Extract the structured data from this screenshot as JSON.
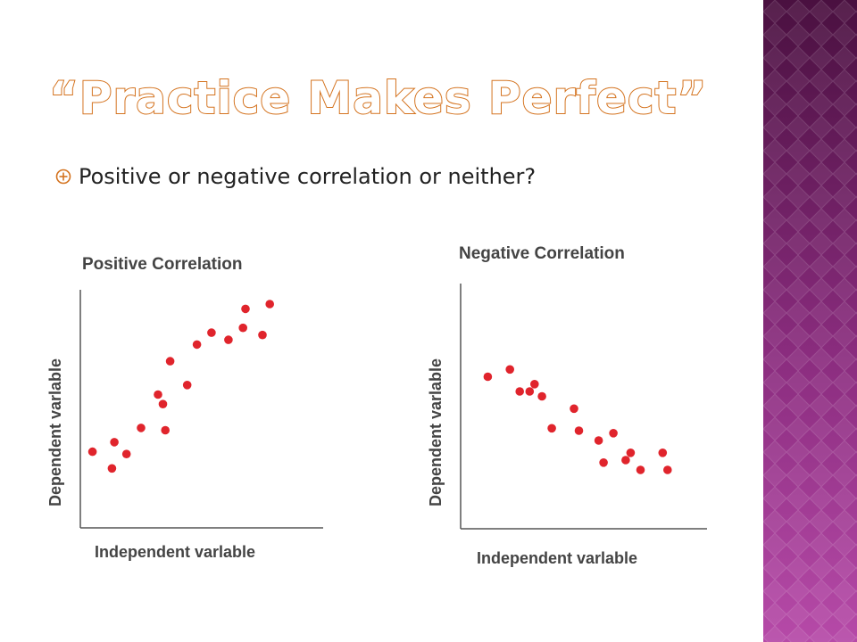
{
  "slide": {
    "title": "“Practice Makes Perfect”",
    "bullet": "Positive or negative correlation or neither?",
    "accent_color": "#d4731f",
    "sidebar_colors": [
      "#4a1040",
      "#b64aa8"
    ],
    "bullet_icon": "circled-plus-bullet-icon"
  },
  "chart_data": [
    {
      "type": "scatter",
      "title": "Positive Correlation",
      "xlabel": "Independent varlable",
      "ylabel": "Dependent varlable",
      "point_color": "#e0242c",
      "xlim": [
        0,
        100
      ],
      "ylim": [
        0,
        100
      ],
      "grid": false,
      "points": [
        {
          "x": 5,
          "y": 32
        },
        {
          "x": 13,
          "y": 25
        },
        {
          "x": 14,
          "y": 36
        },
        {
          "x": 19,
          "y": 31
        },
        {
          "x": 25,
          "y": 42
        },
        {
          "x": 32,
          "y": 56
        },
        {
          "x": 34,
          "y": 52
        },
        {
          "x": 35,
          "y": 41
        },
        {
          "x": 37,
          "y": 70
        },
        {
          "x": 44,
          "y": 60
        },
        {
          "x": 48,
          "y": 77
        },
        {
          "x": 54,
          "y": 82
        },
        {
          "x": 61,
          "y": 79
        },
        {
          "x": 67,
          "y": 84
        },
        {
          "x": 68,
          "y": 92
        },
        {
          "x": 75,
          "y": 81
        },
        {
          "x": 78,
          "y": 94
        }
      ]
    },
    {
      "type": "scatter",
      "title": "Negative Correlation",
      "xlabel": "Independent varlable",
      "ylabel": "Dependent varlable",
      "point_color": "#e0242c",
      "xlim": [
        0,
        100
      ],
      "ylim": [
        0,
        100
      ],
      "grid": false,
      "points": [
        {
          "x": 11,
          "y": 62
        },
        {
          "x": 20,
          "y": 65
        },
        {
          "x": 24,
          "y": 56
        },
        {
          "x": 28,
          "y": 56
        },
        {
          "x": 30,
          "y": 59
        },
        {
          "x": 33,
          "y": 54
        },
        {
          "x": 37,
          "y": 41
        },
        {
          "x": 46,
          "y": 49
        },
        {
          "x": 48,
          "y": 40
        },
        {
          "x": 56,
          "y": 36
        },
        {
          "x": 58,
          "y": 27
        },
        {
          "x": 62,
          "y": 39
        },
        {
          "x": 67,
          "y": 28
        },
        {
          "x": 69,
          "y": 31
        },
        {
          "x": 73,
          "y": 24
        },
        {
          "x": 82,
          "y": 31
        },
        {
          "x": 84,
          "y": 24
        }
      ]
    }
  ]
}
